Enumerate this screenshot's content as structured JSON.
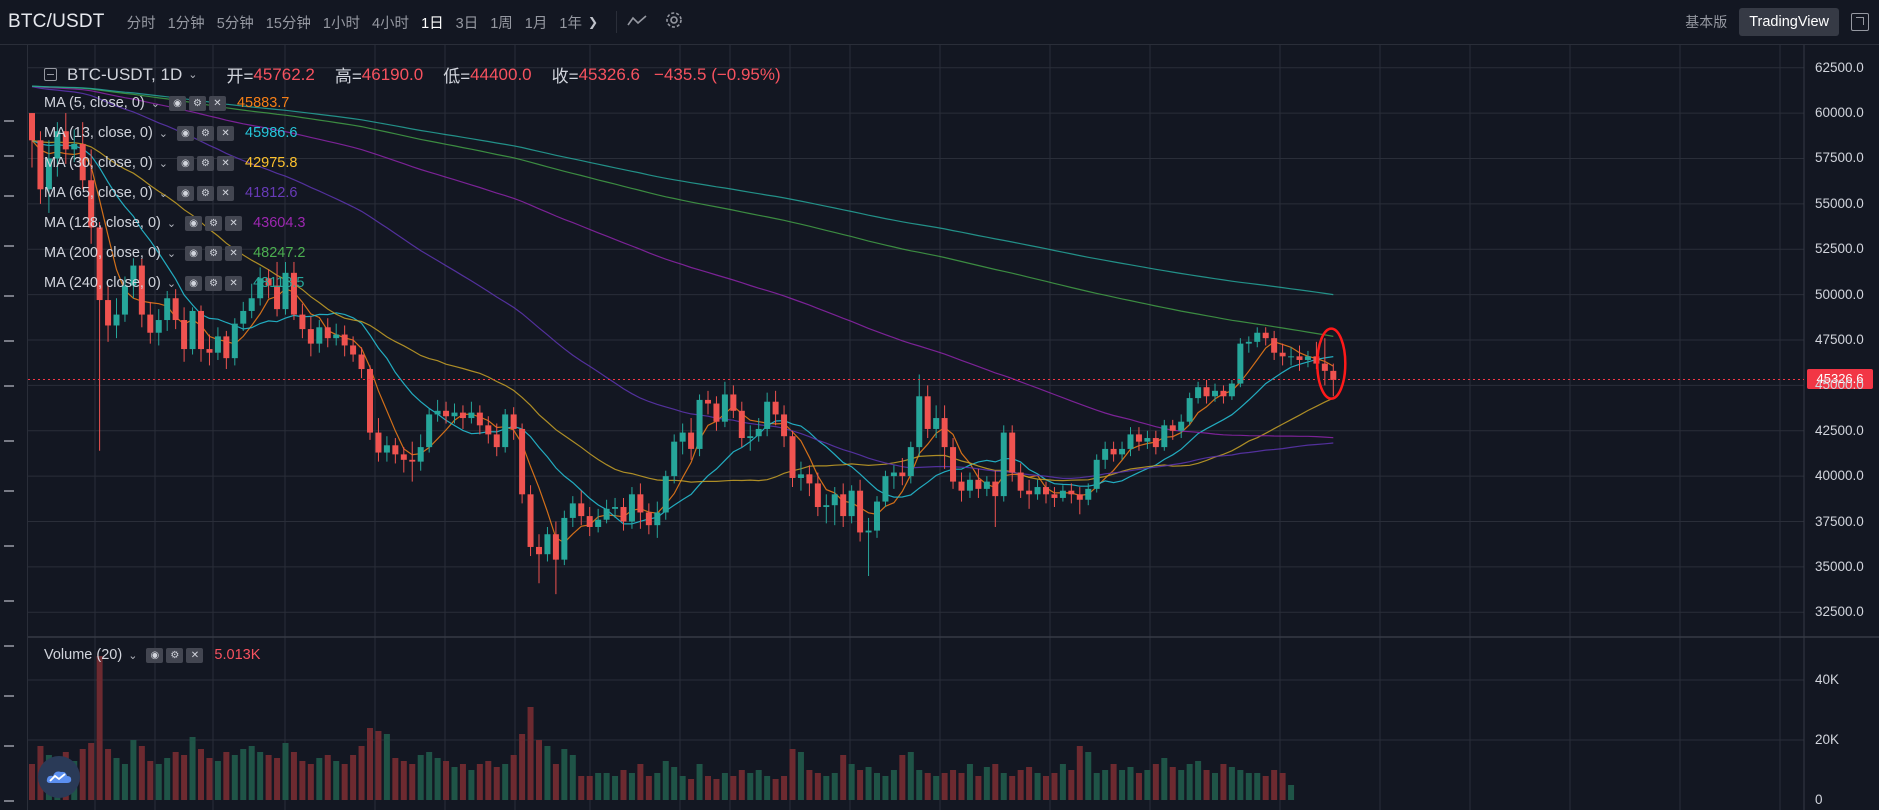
{
  "toolbar": {
    "pair": "BTC/USDT",
    "intervals": [
      "分时",
      "1分钟",
      "5分钟",
      "15分钟",
      "1小时",
      "4小时",
      "1日",
      "3日",
      "1周",
      "1月",
      "1年"
    ],
    "active_interval": "1日",
    "basic_label": "基本版",
    "tradingview_label": "TradingView"
  },
  "ohlc": {
    "symbol": "BTC-USDT, 1D",
    "open_label": "开=",
    "open": "45762.2",
    "high_label": "高=",
    "high": "46190.0",
    "low_label": "低=",
    "low": "44400.0",
    "close_label": "收=",
    "close": "45326.6",
    "change": "−435.5 (−0.95%)"
  },
  "indicators": [
    {
      "name": "MA (5, close, 0)",
      "value": "45883.7",
      "color": "#f57f17"
    },
    {
      "name": "MA (13, close, 0)",
      "value": "45986.6",
      "color": "#26c6da"
    },
    {
      "name": "MA (30, close, 0)",
      "value": "42975.8",
      "color": "#fbc02d"
    },
    {
      "name": "MA (65, close, 0)",
      "value": "41812.6",
      "color": "#673ab7"
    },
    {
      "name": "MA (128, close, 0)",
      "value": "43604.3",
      "color": "#9c27b0"
    },
    {
      "name": "MA (200, close, 0)",
      "value": "48247.2",
      "color": "#4caf50"
    },
    {
      "name": "MA (240, close, 0)",
      "value": "48118.5",
      "color": "#26a69a"
    }
  ],
  "volume": {
    "name": "Volume (20)",
    "value": "5.013K",
    "color": "#f7525f"
  },
  "price_axis": {
    "labels": [
      "62500.0",
      "60000.0",
      "57500.0",
      "55000.0",
      "52500.0",
      "50000.0",
      "47500.0",
      "45000.0",
      "42500.0",
      "40000.0",
      "37500.0",
      "35000.0",
      "32500.0"
    ],
    "current": "45326.6"
  },
  "volume_axis": {
    "labels": [
      "40K",
      "20K",
      "0"
    ]
  },
  "colors": {
    "up": "#26a69a",
    "down": "#ef5350",
    "background": "#131722",
    "grid": "#2a2e39",
    "highlight": "#ff1a1a"
  },
  "icons": {
    "settings": "gear-icon",
    "compare": "wave-icon",
    "fullscreen": "fullscreen-icon",
    "logo": "cloud-logo-icon"
  },
  "chart_data": {
    "type": "candlestick",
    "ylim": [
      31250,
      63750
    ],
    "candles": [
      [
        60000,
        58500,
        60000,
        57000
      ],
      [
        58500,
        55800,
        59000,
        55000
      ],
      [
        55800,
        57500,
        58500,
        54500
      ],
      [
        57500,
        59000,
        59500,
        56500
      ],
      [
        59000,
        58000,
        60000,
        57200
      ],
      [
        58000,
        58300,
        59100,
        57300
      ],
      [
        58300,
        56300,
        59500,
        55800
      ],
      [
        56300,
        53700,
        58000,
        52800
      ],
      [
        53700,
        49700,
        54000,
        41400
      ],
      [
        49700,
        48300,
        50500,
        47400
      ],
      [
        48300,
        48900,
        49800,
        47600
      ],
      [
        48900,
        50500,
        51000,
        48500
      ],
      [
        50500,
        51600,
        52000,
        49800
      ],
      [
        51600,
        48900,
        52000,
        48200
      ],
      [
        48900,
        47900,
        49600,
        47300
      ],
      [
        47900,
        48600,
        49200,
        47200
      ],
      [
        48600,
        49800,
        50200,
        48000
      ],
      [
        49800,
        48600,
        50300,
        48100
      ],
      [
        48600,
        47000,
        49300,
        46300
      ],
      [
        47000,
        49100,
        49300,
        46700
      ],
      [
        49100,
        47000,
        49400,
        46300
      ],
      [
        47000,
        46800,
        47800,
        46100
      ],
      [
        46800,
        47700,
        48200,
        46400
      ],
      [
        47700,
        46500,
        48000,
        45900
      ],
      [
        46500,
        48400,
        48700,
        46100
      ],
      [
        48400,
        49100,
        49600,
        48000
      ],
      [
        49100,
        49800,
        50600,
        48700
      ],
      [
        49800,
        50900,
        51500,
        49400
      ],
      [
        50900,
        50500,
        51400,
        49800
      ],
      [
        50500,
        49200,
        51800,
        48800
      ],
      [
        49200,
        51200,
        51800,
        48900
      ],
      [
        51200,
        48900,
        51800,
        48600
      ],
      [
        48900,
        48100,
        49500,
        47600
      ],
      [
        48100,
        47300,
        48800,
        46600
      ],
      [
        47300,
        48200,
        48600,
        46800
      ],
      [
        48200,
        47600,
        48700,
        47100
      ],
      [
        47600,
        47800,
        48400,
        47200
      ],
      [
        47800,
        47200,
        48300,
        46600
      ],
      [
        47200,
        46700,
        47700,
        46300
      ],
      [
        46700,
        45900,
        47100,
        45400
      ],
      [
        45900,
        42400,
        46100,
        42000
      ],
      [
        42400,
        41300,
        43200,
        40800
      ],
      [
        41300,
        41700,
        42200,
        40800
      ],
      [
        41700,
        41200,
        42100,
        40700
      ],
      [
        41200,
        40900,
        41600,
        40200
      ],
      [
        40900,
        40800,
        41900,
        39700
      ],
      [
        40800,
        41600,
        42300,
        40300
      ],
      [
        41600,
        43400,
        43700,
        41300
      ],
      [
        43400,
        43600,
        44200,
        43000
      ],
      [
        43600,
        43300,
        44100,
        42900
      ],
      [
        43300,
        43500,
        44000,
        42900
      ],
      [
        43500,
        43200,
        43900,
        42600
      ],
      [
        43200,
        43500,
        44100,
        42900
      ],
      [
        43500,
        42800,
        43900,
        42300
      ],
      [
        42800,
        42300,
        43300,
        41800
      ],
      [
        42300,
        41600,
        42900,
        41100
      ],
      [
        41600,
        43400,
        43700,
        41300
      ],
      [
        43400,
        42600,
        43800,
        42000
      ],
      [
        42600,
        39000,
        42900,
        38500
      ],
      [
        39000,
        36100,
        39500,
        35600
      ],
      [
        36100,
        35700,
        36800,
        34100
      ],
      [
        35700,
        36800,
        37200,
        35300
      ],
      [
        36800,
        35400,
        37500,
        33500
      ],
      [
        35400,
        37700,
        38100,
        35100
      ],
      [
        37700,
        38500,
        38900,
        37200
      ],
      [
        38500,
        37800,
        39200,
        37300
      ],
      [
        37800,
        37200,
        38300,
        36700
      ],
      [
        37200,
        37600,
        38200,
        36900
      ],
      [
        37600,
        38200,
        38700,
        37400
      ],
      [
        38200,
        38300,
        38800,
        37700
      ],
      [
        38300,
        37500,
        38800,
        37000
      ],
      [
        37500,
        39000,
        39400,
        37100
      ],
      [
        39000,
        38000,
        39600,
        37100
      ],
      [
        38000,
        37300,
        38500,
        36800
      ],
      [
        37300,
        38000,
        38600,
        36600
      ],
      [
        38000,
        40000,
        40300,
        37600
      ],
      [
        40000,
        41900,
        42300,
        39600
      ],
      [
        41900,
        42400,
        42900,
        41200
      ],
      [
        42400,
        41500,
        43200,
        40900
      ],
      [
        41500,
        44200,
        44500,
        41100
      ],
      [
        44200,
        44000,
        44700,
        43400
      ],
      [
        44000,
        43000,
        44400,
        42500
      ],
      [
        43000,
        44500,
        45200,
        42700
      ],
      [
        44500,
        43600,
        45000,
        43200
      ],
      [
        43600,
        42100,
        44100,
        41600
      ],
      [
        42100,
        42200,
        42800,
        41400
      ],
      [
        42200,
        42600,
        43200,
        41900
      ],
      [
        42600,
        44100,
        44600,
        42200
      ],
      [
        44100,
        43400,
        44700,
        42800
      ],
      [
        43400,
        42200,
        43900,
        41600
      ],
      [
        42200,
        39900,
        42500,
        39400
      ],
      [
        39900,
        40100,
        40800,
        39200
      ],
      [
        40100,
        39600,
        40600,
        38900
      ],
      [
        39600,
        38300,
        40200,
        37800
      ],
      [
        38300,
        38400,
        39000,
        37400
      ],
      [
        38400,
        39000,
        39400,
        37300
      ],
      [
        39000,
        37800,
        39600,
        37200
      ],
      [
        37800,
        39200,
        39500,
        37400
      ],
      [
        39200,
        36900,
        39800,
        36400
      ],
      [
        36900,
        37000,
        37700,
        34500
      ],
      [
        37000,
        38600,
        38900,
        36600
      ],
      [
        38600,
        40000,
        40300,
        38300
      ],
      [
        40000,
        40200,
        40600,
        39300
      ],
      [
        40200,
        40000,
        41000,
        39500
      ],
      [
        40000,
        41600,
        41900,
        39600
      ],
      [
        41600,
        44400,
        45600,
        41100
      ],
      [
        44400,
        42600,
        45000,
        42100
      ],
      [
        42600,
        43200,
        43900,
        42100
      ],
      [
        43200,
        41600,
        43900,
        40400
      ],
      [
        41600,
        39700,
        42100,
        39300
      ],
      [
        39700,
        39200,
        40200,
        38600
      ],
      [
        39200,
        39800,
        40200,
        38800
      ],
      [
        39800,
        39300,
        40400,
        38800
      ],
      [
        39300,
        39700,
        40000,
        38900
      ],
      [
        39700,
        38900,
        40300,
        37200
      ],
      [
        38900,
        42400,
        42800,
        38600
      ],
      [
        42400,
        40200,
        42800,
        39700
      ],
      [
        40200,
        39200,
        40700,
        38800
      ],
      [
        39200,
        39000,
        39800,
        38200
      ],
      [
        39000,
        39400,
        39800,
        38700
      ],
      [
        39400,
        39000,
        39700,
        38500
      ],
      [
        39000,
        38800,
        39400,
        38300
      ],
      [
        38800,
        39200,
        39500,
        38600
      ],
      [
        39200,
        39000,
        39600,
        38500
      ],
      [
        39000,
        38700,
        39400,
        37900
      ],
      [
        38700,
        39300,
        39600,
        38400
      ],
      [
        39300,
        40900,
        41200,
        39100
      ],
      [
        40900,
        41500,
        41900,
        40400
      ],
      [
        41500,
        41200,
        41900,
        40800
      ],
      [
        41200,
        41500,
        41900,
        40900
      ],
      [
        41500,
        42300,
        42700,
        41100
      ],
      [
        42300,
        41900,
        42700,
        41400
      ],
      [
        41900,
        42100,
        42500,
        41500
      ],
      [
        42100,
        41600,
        42500,
        41200
      ],
      [
        41600,
        42800,
        43100,
        41400
      ],
      [
        42800,
        42500,
        43100,
        42000
      ],
      [
        42500,
        43000,
        43400,
        42100
      ],
      [
        43000,
        44300,
        44600,
        42800
      ],
      [
        44300,
        44900,
        45200,
        44000
      ],
      [
        44900,
        44400,
        45300,
        44000
      ],
      [
        44400,
        44700,
        45100,
        44100
      ],
      [
        44700,
        44400,
        45000,
        44000
      ],
      [
        44400,
        45100,
        45300,
        44200
      ],
      [
        45100,
        47300,
        47600,
        44900
      ],
      [
        47300,
        47400,
        47700,
        46800
      ],
      [
        47400,
        47900,
        48200,
        47100
      ],
      [
        47900,
        47600,
        48200,
        47200
      ],
      [
        47600,
        46800,
        48000,
        46400
      ],
      [
        46800,
        46600,
        47300,
        46100
      ],
      [
        46600,
        46600,
        47100,
        46100
      ],
      [
        46600,
        46400,
        47200,
        45800
      ],
      [
        46400,
        46600,
        46900,
        46000
      ],
      [
        46600,
        46200,
        47400,
        45900
      ],
      [
        46200,
        45800,
        47600,
        45000
      ],
      [
        45800,
        45300,
        46200,
        44400
      ]
    ],
    "volumes": [
      12,
      18,
      15,
      14,
      16,
      13,
      17,
      19,
      48,
      17,
      14,
      12,
      20,
      18,
      13,
      12,
      14,
      16,
      15,
      21,
      17,
      14,
      13,
      16,
      15,
      17,
      18,
      16,
      15,
      14,
      19,
      16,
      13,
      12,
      14,
      15,
      13,
      12,
      15,
      18,
      24,
      23,
      22,
      14,
      13,
      12,
      15,
      16,
      14,
      13,
      11,
      12,
      10,
      12,
      13,
      11,
      12,
      15,
      22,
      31,
      20,
      18,
      12,
      17,
      15,
      8,
      8,
      9,
      9,
      8,
      10,
      9,
      12,
      8,
      9,
      13,
      11,
      8,
      7,
      12,
      8,
      7,
      9,
      8,
      10,
      9,
      10,
      8,
      7,
      8,
      17,
      16,
      10,
      9,
      8,
      9,
      15,
      12,
      10,
      11,
      9,
      8,
      10,
      15,
      16,
      10,
      9,
      8,
      9,
      10,
      9,
      12,
      8,
      11,
      12,
      9,
      8,
      10,
      11,
      9,
      8,
      9,
      12,
      10,
      18,
      16,
      9,
      10,
      12,
      10,
      11,
      9,
      10,
      12,
      14,
      11,
      10,
      12,
      13,
      10,
      9,
      12,
      11,
      10,
      9,
      9,
      8,
      10,
      9,
      5
    ],
    "ma": [
      {
        "name": "MA (5, close, 0)",
        "color": "#f57f17",
        "period": 5
      },
      {
        "name": "MA (13, close, 0)",
        "color": "#26c6da",
        "period": 13
      },
      {
        "name": "MA (30, close, 0)",
        "color": "#c9a227",
        "period": 30
      },
      {
        "name": "MA (65, close, 0)",
        "color": "#5e35b1",
        "period": 65
      },
      {
        "name": "MA (128, close, 0)",
        "color": "#8e24aa",
        "period": 128
      },
      {
        "name": "MA (200, close, 0)",
        "color": "#43a047",
        "period": 200
      },
      {
        "name": "MA (240, close, 0)",
        "color": "#26a69a",
        "period": 240
      }
    ]
  }
}
